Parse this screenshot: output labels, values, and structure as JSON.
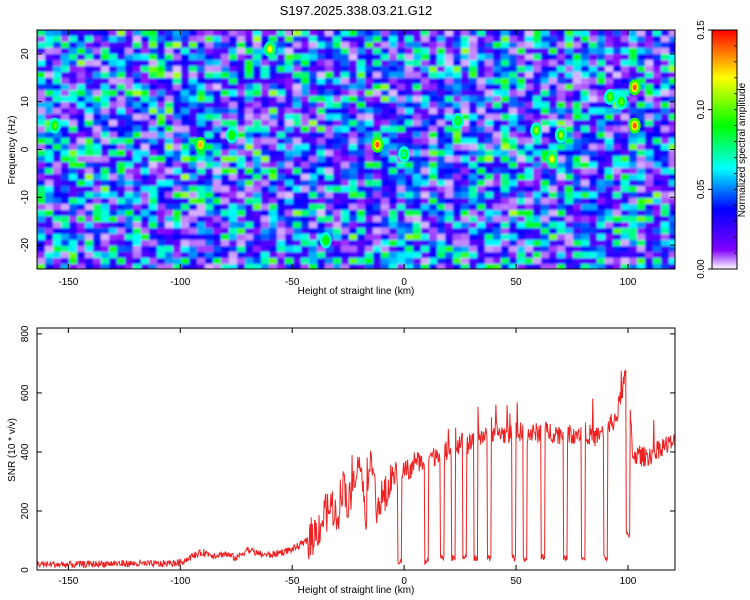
{
  "title": "S197.2025.338.03.21.G12",
  "chart_data": [
    {
      "type": "heatmap",
      "xlabel": "Height of straight line (km)",
      "ylabel": "Frequency (Hz)",
      "xlim": [
        -164,
        121
      ],
      "ylim": [
        -25,
        25
      ],
      "xticks": [
        -150,
        -100,
        -50,
        0,
        50,
        100
      ],
      "yticks": [
        -20,
        -10,
        0,
        10,
        20
      ],
      "colorbar": {
        "label": "Normalized spectral amplitude",
        "range": [
          0,
          0.15
        ],
        "ticks": [
          "0.00",
          "0.05",
          "0.10",
          "0.15"
        ],
        "colors": [
          "#ffffff",
          "#8000ff",
          "#0000ff",
          "#00ffff",
          "#00ff00",
          "#ffff00",
          "#ff0000"
        ]
      },
      "hotspots": [
        {
          "x": -12,
          "y": 1,
          "v": 0.14
        },
        {
          "x": 103,
          "y": 13,
          "v": 0.14
        },
        {
          "x": 103,
          "y": 5,
          "v": 0.14
        },
        {
          "x": -91,
          "y": 1,
          "v": 0.13
        },
        {
          "x": -60,
          "y": 21,
          "v": 0.12
        },
        {
          "x": 66,
          "y": -2,
          "v": 0.12
        },
        {
          "x": 70,
          "y": 3,
          "v": 0.11
        },
        {
          "x": 59,
          "y": 4,
          "v": 0.11
        },
        {
          "x": 92,
          "y": 11,
          "v": 0.1
        },
        {
          "x": 97,
          "y": 10,
          "v": 0.1
        },
        {
          "x": -156,
          "y": 5,
          "v": 0.1
        },
        {
          "x": -35,
          "y": -19,
          "v": 0.09
        },
        {
          "x": -77,
          "y": 3,
          "v": 0.09
        },
        {
          "x": 24,
          "y": 6,
          "v": 0.08
        },
        {
          "x": 0,
          "y": -1,
          "v": 0.07
        }
      ]
    },
    {
      "type": "line",
      "xlabel": "Height of straight line (km)",
      "ylabel": "SNR (10 * v/v)",
      "xlim": [
        -164,
        121
      ],
      "ylim": [
        0,
        820
      ],
      "xticks": [
        -150,
        -100,
        -50,
        0,
        50,
        100
      ],
      "yticks": [
        0,
        200,
        400,
        600,
        800
      ],
      "series": [
        {
          "name": "SNR",
          "color": "#ee2222",
          "x": [
            -164,
            -150,
            -130,
            -110,
            -100,
            -95,
            -90,
            -85,
            -80,
            -75,
            -70,
            -65,
            -60,
            -55,
            -50,
            -45,
            -40,
            -35,
            -32,
            -30,
            -27,
            -25,
            -20,
            -17,
            -15,
            -12,
            -10,
            -7,
            -5,
            -3,
            0,
            3,
            5,
            8,
            10,
            13,
            15,
            18,
            20,
            23,
            25,
            28,
            30,
            33,
            35,
            38,
            40,
            45,
            50,
            55,
            60,
            65,
            70,
            75,
            80,
            85,
            90,
            95,
            97,
            100,
            102,
            105,
            110,
            115,
            121
          ],
          "y": [
            20,
            18,
            22,
            20,
            25,
            45,
            60,
            50,
            55,
            40,
            70,
            55,
            50,
            60,
            70,
            90,
            120,
            190,
            220,
            170,
            320,
            210,
            380,
            200,
            390,
            210,
            240,
            260,
            330,
            280,
            350,
            330,
            380,
            360,
            400,
            380,
            400,
            390,
            420,
            400,
            440,
            420,
            430,
            450,
            460,
            440,
            470,
            460,
            470,
            460,
            465,
            470,
            460,
            460,
            470,
            450,
            470,
            520,
            600,
            700,
            400,
            380,
            390,
            420,
            430
          ]
        }
      ],
      "dips": [
        {
          "x": -2,
          "y": 30
        },
        {
          "x": 10,
          "y": 30
        },
        {
          "x": 17,
          "y": 40
        },
        {
          "x": 22,
          "y": 40
        },
        {
          "x": 27,
          "y": 45
        },
        {
          "x": 32,
          "y": 40
        },
        {
          "x": 38,
          "y": 40
        },
        {
          "x": 49,
          "y": 40
        },
        {
          "x": 54,
          "y": 40
        },
        {
          "x": 62,
          "y": 45
        },
        {
          "x": 72,
          "y": 45
        },
        {
          "x": 80,
          "y": 40
        },
        {
          "x": 90,
          "y": 40
        },
        {
          "x": 100,
          "y": 120
        }
      ]
    }
  ]
}
